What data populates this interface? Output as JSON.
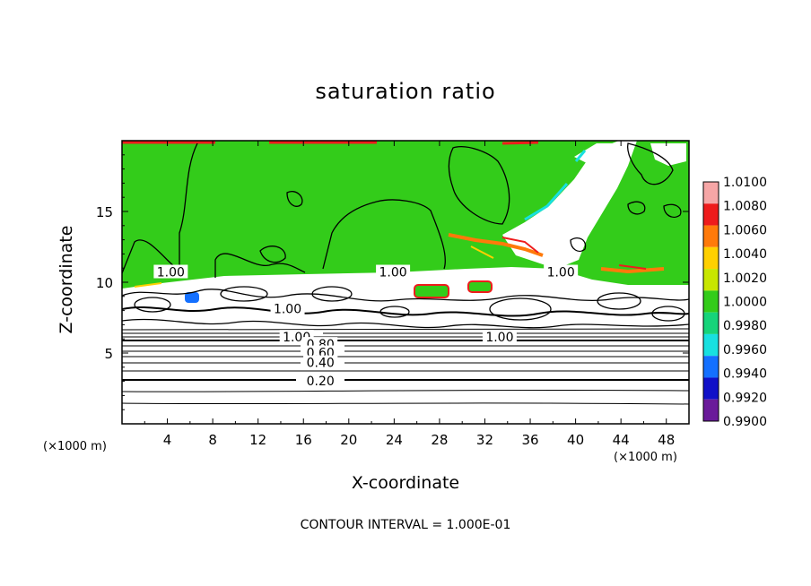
{
  "chart_data": {
    "type": "heatmap",
    "title": "saturation ratio",
    "xlabel": "X-coordinate",
    "ylabel": "Z-coordinate",
    "x_unit_label": "(×1000 m)",
    "x_unit_label_right": "(×1000 m)",
    "footer": "CONTOUR INTERVAL = 1.000E-01",
    "xlim": [
      0,
      50
    ],
    "ylim": [
      0,
      20
    ],
    "x_ticks": [
      4,
      8,
      12,
      16,
      20,
      24,
      28,
      32,
      36,
      40,
      44,
      48
    ],
    "y_ticks": [
      5,
      10,
      15
    ],
    "colorbar": {
      "labels": [
        "1.0100",
        "1.0080",
        "1.0060",
        "1.0040",
        "1.0020",
        "1.0000",
        "0.9980",
        "0.9960",
        "0.9940",
        "0.9920",
        "0.9900"
      ],
      "colors": [
        "#f6a6a6",
        "#ee1c1c",
        "#ff7a0a",
        "#ffd000",
        "#c8e600",
        "#33cc1a",
        "#16d47a",
        "#18e0e0",
        "#1470ff",
        "#1010c8",
        "#6a1a9a"
      ]
    },
    "contour_labels": [
      {
        "text": "1.00",
        "x": 4.3,
        "z": 10.6
      },
      {
        "text": "1.00",
        "x": 23.9,
        "z": 10.6
      },
      {
        "text": "1.00",
        "x": 38.7,
        "z": 10.6
      },
      {
        "text": "1.00",
        "x": 14.6,
        "z": 8.0
      },
      {
        "text": "1.00",
        "x": 15.4,
        "z": 6.0
      },
      {
        "text": "1.00",
        "x": 33.3,
        "z": 6.0
      },
      {
        "text": "0.80",
        "x": 17.5,
        "z": 5.5
      },
      {
        "text": "0.60",
        "x": 17.5,
        "z": 4.9
      },
      {
        "text": "0.40",
        "x": 17.5,
        "z": 4.2
      },
      {
        "text": "0.20",
        "x": 17.5,
        "z": 2.9
      }
    ],
    "contour_levels_below_cloud": [
      0.1,
      0.2,
      0.3,
      0.4,
      0.5,
      0.6,
      0.7,
      0.8,
      0.9
    ],
    "grid": false,
    "legend": "right"
  }
}
